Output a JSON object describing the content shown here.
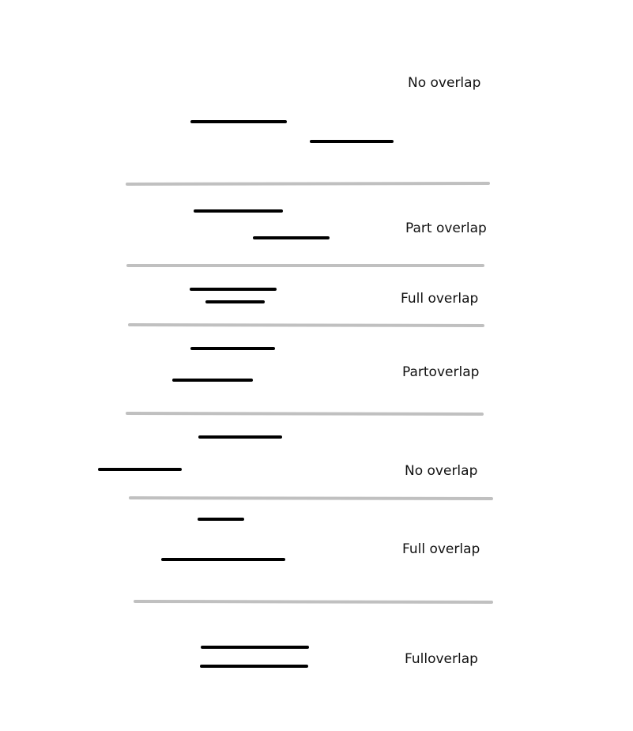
{
  "colors": {
    "segment": "#000000",
    "divider": "#c0c0c0",
    "background": "#ffffff"
  },
  "panels": [
    {
      "label": "No overlap"
    },
    {
      "label": "Part overlap"
    },
    {
      "label": "Full overlap"
    },
    {
      "label": "Partoverlap"
    },
    {
      "label": "No overlap"
    },
    {
      "label": "Full overlap"
    },
    {
      "label": "Fulloverlap"
    }
  ]
}
